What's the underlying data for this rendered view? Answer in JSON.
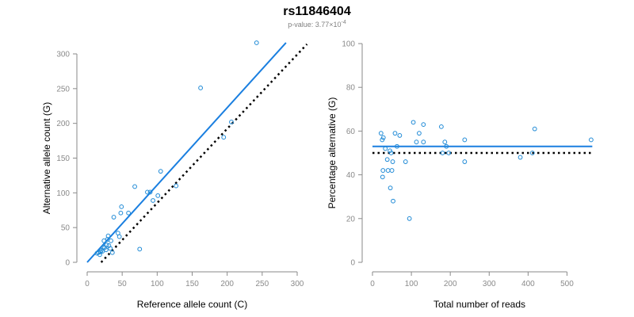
{
  "figure": {
    "title": "rs11846404",
    "subtitle": "p-value: 3.77×10",
    "subtitle_exponent": "-4"
  },
  "colors": {
    "points": "#1f8ad6",
    "fit_line": "#1a7fe0",
    "reference_line": "#000000",
    "axis": "#8a8a8a"
  },
  "chart_data": [
    {
      "type": "scatter",
      "name": "allele-counts",
      "xlabel": "Reference allele count (C)",
      "ylabel": "Alternative allele count (G)",
      "xlim": [
        0,
        300
      ],
      "ylim": [
        0,
        300
      ],
      "xticks": [
        0,
        50,
        100,
        150,
        200,
        250,
        300
      ],
      "yticks": [
        0,
        50,
        100,
        150,
        200,
        250,
        300
      ],
      "grid": false,
      "points": [
        [
          14,
          13
        ],
        [
          16,
          14
        ],
        [
          18,
          11
        ],
        [
          19,
          15
        ],
        [
          20,
          17
        ],
        [
          22,
          16
        ],
        [
          23,
          22
        ],
        [
          24,
          31
        ],
        [
          25,
          21
        ],
        [
          27,
          18
        ],
        [
          28,
          25
        ],
        [
          29,
          33
        ],
        [
          30,
          38
        ],
        [
          31,
          24
        ],
        [
          33,
          20
        ],
        [
          34,
          31
        ],
        [
          36,
          14
        ],
        [
          38,
          65
        ],
        [
          44,
          42
        ],
        [
          46,
          37
        ],
        [
          48,
          71
        ],
        [
          49,
          80
        ],
        [
          59,
          71
        ],
        [
          68,
          109
        ],
        [
          75,
          19
        ],
        [
          86,
          101
        ],
        [
          90,
          101
        ],
        [
          94,
          89
        ],
        [
          101,
          96
        ],
        [
          105,
          131
        ],
        [
          127,
          110
        ],
        [
          162,
          251
        ],
        [
          195,
          180
        ],
        [
          206,
          202
        ],
        [
          242,
          316
        ]
      ],
      "lines": [
        {
          "role": "fit",
          "style": "solid",
          "x": [
            0,
            284
          ],
          "y": [
            0,
            316
          ]
        },
        {
          "role": "reference",
          "style": "dotted",
          "x": [
            20,
            314
          ],
          "y": [
            0,
            314
          ]
        }
      ]
    },
    {
      "type": "scatter",
      "name": "percentage-alternative",
      "xlabel": "Total number of reads",
      "ylabel": "Percentage alternative (G)",
      "xlim": [
        0,
        550
      ],
      "ylim": [
        0,
        100
      ],
      "xticks": [
        0,
        100,
        200,
        300,
        400,
        500
      ],
      "yticks": [
        0,
        20,
        40,
        60,
        80,
        100
      ],
      "grid": false,
      "points": [
        [
          22,
          59
        ],
        [
          25,
          56
        ],
        [
          26,
          39
        ],
        [
          27,
          42
        ],
        [
          28,
          57
        ],
        [
          33,
          52
        ],
        [
          38,
          47
        ],
        [
          40,
          42
        ],
        [
          45,
          51
        ],
        [
          46,
          34
        ],
        [
          48,
          50
        ],
        [
          50,
          42
        ],
        [
          52,
          46
        ],
        [
          53,
          28
        ],
        [
          58,
          59
        ],
        [
          63,
          53
        ],
        [
          70,
          58
        ],
        [
          85,
          46
        ],
        [
          95,
          20
        ],
        [
          105,
          64
        ],
        [
          113,
          55
        ],
        [
          120,
          59
        ],
        [
          131,
          63
        ],
        [
          131,
          55
        ],
        [
          177,
          62
        ],
        [
          180,
          50
        ],
        [
          186,
          55
        ],
        [
          190,
          53
        ],
        [
          196,
          50
        ],
        [
          237,
          46
        ],
        [
          237,
          56
        ],
        [
          380,
          48
        ],
        [
          411,
          50
        ],
        [
          417,
          61
        ],
        [
          562,
          56
        ]
      ],
      "lines": [
        {
          "role": "fit",
          "style": "solid",
          "x": [
            0,
            565
          ],
          "y": [
            53,
            53
          ]
        },
        {
          "role": "reference",
          "style": "dotted",
          "x": [
            0,
            565
          ],
          "y": [
            50,
            50
          ]
        }
      ]
    }
  ]
}
